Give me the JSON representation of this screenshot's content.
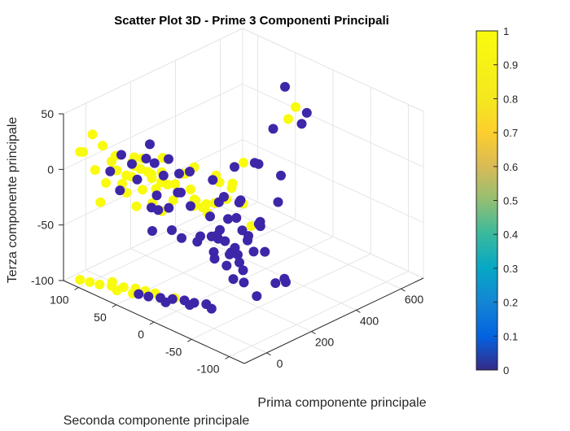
{
  "chart_data": {
    "type": "scatter",
    "dimensions": 3,
    "title": "Scatter Plot 3D - Prime 3 Componenti Principali",
    "xlabel": "Prima componente principale",
    "ylabel": "Seconda componente principale",
    "zlabel": "Terza componente principale",
    "xlim": [
      -100,
      700
    ],
    "ylim": [
      -120,
      120
    ],
    "zlim": [
      -100,
      50
    ],
    "xticks": [
      "0",
      "200",
      "400",
      "600"
    ],
    "xtick_values": [
      0,
      200,
      400,
      600
    ],
    "yticks": [
      "100",
      "50",
      "0",
      "-50",
      "-100"
    ],
    "ytick_values": [
      100,
      50,
      0,
      -50,
      -100
    ],
    "zticks": [
      "50",
      "0",
      "-50",
      "-100"
    ],
    "ztick_values": [
      50,
      0,
      -50,
      -100
    ],
    "grid": true,
    "colormap": "parula",
    "colors": {
      "class_0": "#3e26a8",
      "class_1": "#f9fb0e"
    },
    "colorbar": {
      "placement": "right",
      "range": [
        0,
        1
      ],
      "ticks": [
        "0",
        "0.1",
        "0.2",
        "0.3",
        "0.4",
        "0.5",
        "0.6",
        "0.7",
        "0.8",
        "0.9",
        "1"
      ],
      "tick_values": [
        0,
        0.1,
        0.2,
        0.3,
        0.4,
        0.5,
        0.6,
        0.7,
        0.8,
        0.9,
        1
      ]
    },
    "series": [
      {
        "values": 1,
        "points": [
          [
            -60,
            80,
            30
          ],
          [
            -70,
            60,
            28
          ],
          [
            -80,
            100,
            20
          ],
          [
            -50,
            70,
            10
          ],
          [
            -60,
            90,
            5
          ],
          [
            -40,
            60,
            0
          ],
          [
            -55,
            50,
            12
          ],
          [
            -30,
            70,
            8
          ],
          [
            -45,
            80,
            -5
          ],
          [
            -65,
            40,
            15
          ],
          [
            -20,
            60,
            -10
          ],
          [
            -35,
            45,
            20
          ],
          [
            -50,
            30,
            5
          ],
          [
            -25,
            40,
            18
          ],
          [
            -60,
            20,
            25
          ],
          [
            -40,
            20,
            -5
          ],
          [
            -10,
            30,
            15
          ],
          [
            -20,
            50,
            25
          ],
          [
            0,
            20,
            10
          ],
          [
            -30,
            10,
            -10
          ],
          [
            -15,
            15,
            22
          ],
          [
            10,
            30,
            0
          ],
          [
            -5,
            0,
            15
          ],
          [
            20,
            10,
            -5
          ],
          [
            -40,
            0,
            18
          ],
          [
            30,
            -10,
            10
          ],
          [
            10,
            -20,
            0
          ],
          [
            40,
            0,
            20
          ],
          [
            -20,
            -30,
            12
          ],
          [
            50,
            -20,
            -5
          ],
          [
            60,
            10,
            15
          ],
          [
            70,
            -30,
            0
          ],
          [
            80,
            0,
            22
          ],
          [
            90,
            -40,
            5
          ],
          [
            110,
            -20,
            18
          ],
          [
            130,
            -50,
            0
          ],
          [
            100,
            -10,
            -10
          ],
          [
            150,
            -30,
            10
          ],
          [
            120,
            10,
            -15
          ],
          [
            -70,
            80,
            -20
          ],
          [
            -55,
            95,
            35
          ],
          [
            -35,
            35,
            30
          ],
          [
            25,
            40,
            5
          ],
          [
            -10,
            50,
            -20
          ],
          [
            5,
            60,
            15
          ],
          [
            140,
            0,
            -25
          ],
          [
            180,
            -20,
            0
          ],
          [
            300,
            0,
            5
          ],
          [
            260,
            20,
            -15
          ],
          [
            500,
            0,
            25
          ],
          [
            600,
            20,
            20
          ],
          [
            200,
            -40,
            -30
          ],
          [
            -60,
            110,
            15
          ],
          [
            -20,
            80,
            12
          ],
          [
            40,
            30,
            25
          ],
          [
            -60,
            110,
            -100
          ],
          [
            -40,
            90,
            -100
          ],
          [
            -20,
            80,
            -100
          ],
          [
            0,
            70,
            -100
          ],
          [
            -30,
            70,
            -100
          ],
          [
            20,
            60,
            -100
          ],
          [
            -10,
            55,
            -100
          ],
          [
            40,
            40,
            -100
          ],
          [
            60,
            20,
            -100
          ],
          [
            30,
            50,
            -100
          ],
          [
            -50,
            100,
            -100
          ],
          [
            0,
            85,
            -100
          ]
        ]
      },
      {
        "values": 0,
        "points": [
          [
            60,
            -40,
            -20
          ],
          [
            80,
            -30,
            -30
          ],
          [
            100,
            -50,
            -10
          ],
          [
            120,
            -60,
            -25
          ],
          [
            90,
            -20,
            -35
          ],
          [
            70,
            -50,
            -40
          ],
          [
            110,
            -40,
            -45
          ],
          [
            130,
            -30,
            -20
          ],
          [
            150,
            -50,
            -35
          ],
          [
            140,
            -70,
            -15
          ],
          [
            50,
            -30,
            -10
          ],
          [
            160,
            -40,
            -30
          ],
          [
            100,
            -20,
            -50
          ],
          [
            80,
            -60,
            -45
          ],
          [
            120,
            -20,
            -40
          ],
          [
            60,
            -60,
            -30
          ],
          [
            170,
            -60,
            -20
          ],
          [
            90,
            -40,
            -55
          ],
          [
            140,
            -40,
            -50
          ],
          [
            110,
            -70,
            -35
          ],
          [
            130,
            -50,
            -60
          ],
          [
            70,
            -30,
            -50
          ],
          [
            150,
            -20,
            -45
          ],
          [
            100,
            -60,
            -65
          ],
          [
            180,
            -30,
            -10
          ],
          [
            160,
            -70,
            -40
          ],
          [
            40,
            -20,
            -30
          ],
          [
            120,
            -40,
            -70
          ],
          [
            200,
            -50,
            -25
          ],
          [
            60,
            -10,
            -40
          ],
          [
            -20,
            20,
            0
          ],
          [
            0,
            10,
            -10
          ],
          [
            -40,
            40,
            10
          ],
          [
            20,
            0,
            5
          ],
          [
            -10,
            30,
            -15
          ],
          [
            30,
            -10,
            -5
          ],
          [
            -30,
            50,
            20
          ],
          [
            10,
            20,
            15
          ],
          [
            -60,
            70,
            10
          ],
          [
            -50,
            60,
            -5
          ],
          [
            0,
            40,
            25
          ],
          [
            20,
            30,
            -20
          ],
          [
            -20,
            0,
            -25
          ],
          [
            40,
            10,
            0
          ],
          [
            -30,
            20,
            30
          ],
          [
            60,
            0,
            20
          ],
          [
            80,
            20,
            10
          ],
          [
            -10,
            -10,
            -30
          ],
          [
            220,
            -20,
            -15
          ],
          [
            240,
            -40,
            -30
          ],
          [
            260,
            0,
            5
          ],
          [
            300,
            -20,
            10
          ],
          [
            350,
            0,
            0
          ],
          [
            400,
            -20,
            -10
          ],
          [
            500,
            20,
            10
          ],
          [
            560,
            0,
            15
          ],
          [
            620,
            40,
            30
          ],
          [
            650,
            20,
            10
          ],
          [
            280,
            20,
            -30
          ],
          [
            320,
            -40,
            -20
          ],
          [
            180,
            -90,
            -60
          ],
          [
            220,
            -80,
            -70
          ],
          [
            90,
            -80,
            -70
          ],
          [
            140,
            -90,
            -60
          ],
          [
            -40,
            20,
            -30
          ],
          [
            190,
            0,
            -20
          ],
          [
            230,
            20,
            -10
          ],
          [
            100,
            40,
            15
          ],
          [
            50,
            50,
            30
          ],
          [
            -10,
            70,
            20
          ],
          [
            0,
            50,
            -100
          ],
          [
            10,
            40,
            -100
          ],
          [
            30,
            30,
            -100
          ],
          [
            50,
            20,
            -100
          ],
          [
            70,
            10,
            -100
          ],
          [
            80,
            0,
            -100
          ],
          [
            100,
            -10,
            -100
          ],
          [
            60,
            0,
            -100
          ],
          [
            20,
            20,
            -100
          ],
          [
            90,
            -20,
            -100
          ]
        ]
      }
    ]
  }
}
